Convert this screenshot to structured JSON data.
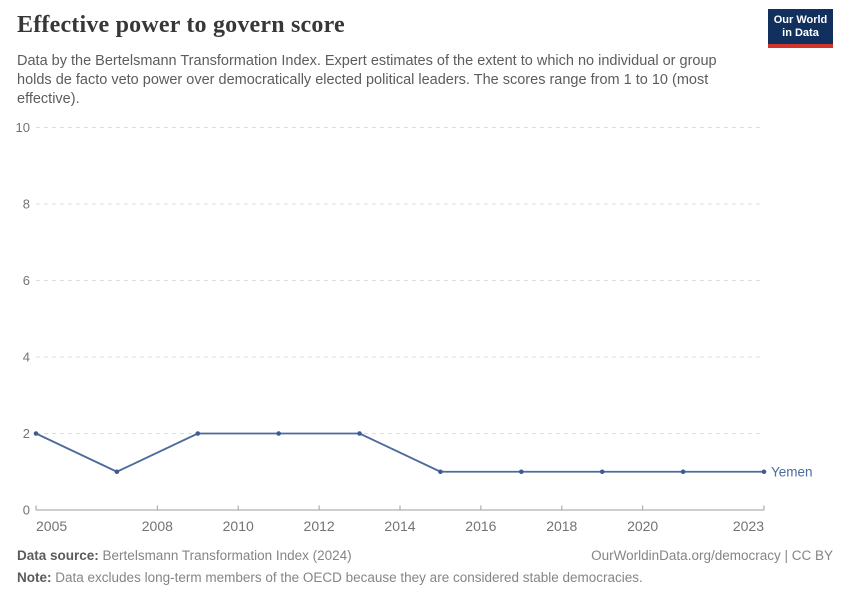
{
  "header": {
    "logo": {
      "line1": "Our World",
      "line2": "in Data"
    }
  },
  "colors": {
    "line": "#4c6a9c",
    "dot": "#3d5c8f",
    "logo_bg": "#12305e",
    "logo_stripe": "#d1352b"
  },
  "chart_data": {
    "type": "line",
    "title": "Effective power to govern score",
    "subtitle": "Data by the Bertelsmann Transformation Index. Expert estimates of the extent to which no individual or group holds de facto veto power over democratically elected political leaders. The scores range from 1 to 10 (most effective).",
    "subtitle_lines": [
      "Data by the Bertelsmann Transformation Index. Expert estimates of the extent to which no individual or group",
      "holds de facto veto power over democratically elected political leaders. The scores range from 1 to 10 (most",
      "effective)."
    ],
    "xlabel": "",
    "ylabel": "",
    "xlim": [
      2005,
      2023
    ],
    "ylim": [
      0,
      10
    ],
    "yticks": [
      0,
      2,
      4,
      6,
      8,
      10
    ],
    "xticks": [
      2005,
      2008,
      2010,
      2012,
      2014,
      2016,
      2018,
      2020,
      2023
    ],
    "grid": "horizontal-dashed",
    "legend_position": "end-of-line-label",
    "series": [
      {
        "name": "Yemen",
        "color": "#4c6a9c",
        "dot_color": "#3d5c8f",
        "x": [
          2005,
          2007,
          2009,
          2011,
          2013,
          2015,
          2017,
          2019,
          2021,
          2023
        ],
        "values": [
          2,
          1,
          2,
          2,
          2,
          1,
          1,
          1,
          1,
          1
        ]
      }
    ]
  },
  "footer": {
    "source_label": "Data source:",
    "source_text": "Bertelsmann Transformation Index (2024)",
    "rights": "OurWorldinData.org/democracy | CC BY",
    "note_label": "Note:",
    "note_text": "Data excludes long-term members of the OECD because they are considered stable democracies."
  }
}
